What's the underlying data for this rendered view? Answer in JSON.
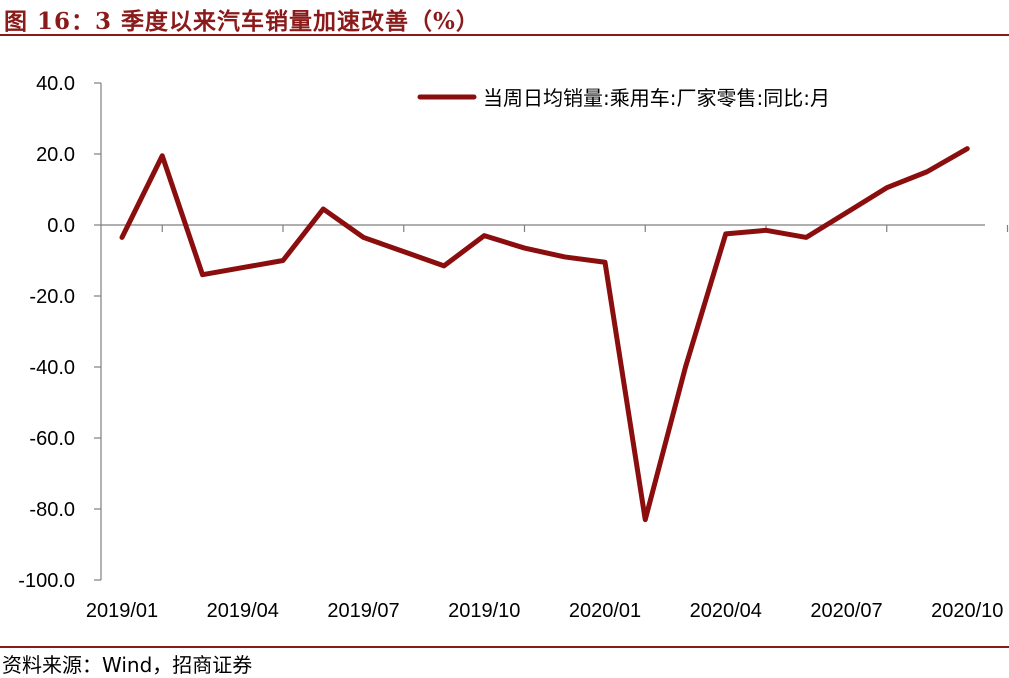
{
  "figure_title": "图 16：3 季度以来汽车销量加速改善（%）",
  "source": "资料来源：Wind，招商证券",
  "colors": {
    "accent": "#8B1A1A",
    "series": "#8B0E0E",
    "axis": "#7F7F7F"
  },
  "chart_data": {
    "type": "line",
    "title": "",
    "xlabel": "",
    "ylabel": "",
    "ylim": [
      -100,
      40
    ],
    "grid": false,
    "legend_position": "top-right",
    "y_ticks": [
      "40.0",
      "20.0",
      "0.0",
      "-20.0",
      "-40.0",
      "-60.0",
      "-80.0",
      "-100.0"
    ],
    "y_tick_values": [
      40,
      20,
      0,
      -20,
      -40,
      -60,
      -80,
      -100
    ],
    "x_tick_labels": [
      "2019/01",
      "2019/04",
      "2019/07",
      "2019/10",
      "2020/01",
      "2020/04",
      "2020/07",
      "2020/10"
    ],
    "x": [
      "2019/01",
      "2019/02",
      "2019/03",
      "2019/04",
      "2019/05",
      "2019/06",
      "2019/07",
      "2019/08",
      "2019/09",
      "2019/10",
      "2019/11",
      "2019/12",
      "2020/01",
      "2020/02",
      "2020/03",
      "2020/04",
      "2020/05",
      "2020/06",
      "2020/07",
      "2020/08",
      "2020/09",
      "2020/10"
    ],
    "series": [
      {
        "name": "当周日均销量:乘用车:厂家零售:同比:月",
        "values": [
          -3.5,
          19.5,
          -14.0,
          -12.0,
          -10.0,
          4.5,
          -3.5,
          -7.5,
          -11.5,
          -3.0,
          -6.5,
          -9.0,
          -10.5,
          -83.0,
          -40.0,
          -2.5,
          -1.5,
          -3.5,
          3.5,
          10.5,
          15.0,
          21.5
        ]
      }
    ]
  }
}
